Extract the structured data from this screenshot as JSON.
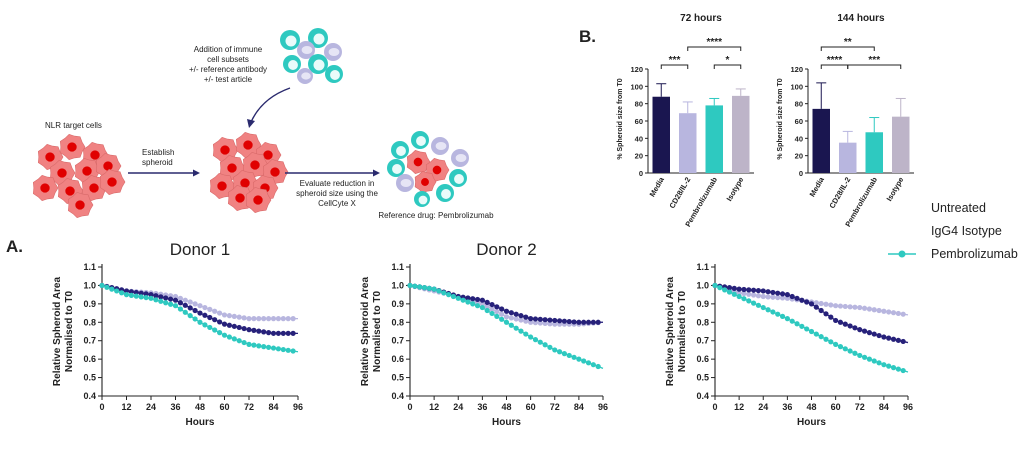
{
  "schematic": {
    "label_targets": "NLR target cells",
    "label_establish": [
      "Establish",
      "spheroid"
    ],
    "label_addition": [
      "Addition of immune",
      "cell subsets",
      "+/- reference antibody",
      "+/- test article"
    ],
    "label_evaluate": [
      "Evaluate reduction in",
      "spheroid size using the",
      "CellCyte X"
    ],
    "label_reference": "Reference drug: Pembrolizumab"
  },
  "panel_labels": {
    "a": "A.",
    "b": "B."
  },
  "legend": {
    "items": [
      {
        "label": "Untreated",
        "color": "#27217a",
        "marker": "none"
      },
      {
        "label": "IgG4 Isotype",
        "color": "#b8b6df",
        "marker": "none"
      },
      {
        "label": "Pembrolizumab",
        "color": "#2ec9c0",
        "marker": "circle"
      }
    ]
  },
  "colors": {
    "untreated": "#27217a",
    "isotype": "#b8b6df",
    "pembrolizumab": "#2ec9c0",
    "cell_red": "#f08282",
    "cell_nucleus": "#e00000",
    "arrow": "#2a2a6e"
  },
  "chart_data": [
    {
      "type": "line",
      "title": "Donor 1",
      "xlabel": "Hours",
      "ylabel": [
        "Relative Spheroid Area",
        "Normalised to T0"
      ],
      "x": [
        0,
        12,
        24,
        36,
        48,
        60,
        72,
        84,
        96
      ],
      "xticks": [
        "0",
        "12",
        "24",
        "36",
        "48",
        "60",
        "72",
        "84",
        "96"
      ],
      "yticks": [
        "0.4",
        "0.5",
        "0.6",
        "0.7",
        "0.8",
        "0.9",
        "1.0",
        "1.1"
      ],
      "ylim": [
        0.4,
        1.1
      ],
      "xlim": [
        0,
        96
      ],
      "series": [
        {
          "name": "Untreated",
          "values": [
            1.0,
            0.97,
            0.95,
            0.92,
            0.85,
            0.79,
            0.76,
            0.74,
            0.74
          ]
        },
        {
          "name": "IgG4 Isotype",
          "values": [
            1.0,
            0.97,
            0.96,
            0.94,
            0.89,
            0.84,
            0.82,
            0.82,
            0.82
          ]
        },
        {
          "name": "Pembrolizumab",
          "values": [
            1.0,
            0.95,
            0.93,
            0.89,
            0.8,
            0.73,
            0.68,
            0.66,
            0.64
          ]
        }
      ]
    },
    {
      "type": "line",
      "title": "Donor 2",
      "xlabel": "Hours",
      "ylabel": [
        "Relative Spheroid Area",
        "Normalised to T0"
      ],
      "x": [
        0,
        12,
        24,
        36,
        48,
        60,
        72,
        84,
        96
      ],
      "xticks": [
        "0",
        "12",
        "24",
        "36",
        "48",
        "60",
        "72",
        "84",
        "96"
      ],
      "yticks": [
        "0.4",
        "0.5",
        "0.6",
        "0.7",
        "0.8",
        "0.9",
        "1.0",
        "1.1"
      ],
      "ylim": [
        0.4,
        1.1
      ],
      "xlim": [
        0,
        96
      ],
      "series": [
        {
          "name": "Untreated",
          "values": [
            1.0,
            0.98,
            0.94,
            0.92,
            0.86,
            0.82,
            0.81,
            0.8,
            0.8
          ]
        },
        {
          "name": "IgG4 Isotype",
          "values": [
            1.0,
            0.97,
            0.94,
            0.9,
            0.83,
            0.8,
            0.79,
            0.79,
            0.8
          ]
        },
        {
          "name": "Pembrolizumab",
          "values": [
            1.0,
            0.98,
            0.93,
            0.88,
            0.8,
            0.72,
            0.65,
            0.6,
            0.55
          ]
        }
      ]
    },
    {
      "type": "line",
      "title": "",
      "xlabel": "Hours",
      "ylabel": [
        "Relative Spheroid Area",
        "Normalised to T0"
      ],
      "x": [
        0,
        12,
        24,
        36,
        48,
        60,
        72,
        84,
        96
      ],
      "xticks": [
        "0",
        "12",
        "24",
        "36",
        "48",
        "60",
        "72",
        "84",
        "96"
      ],
      "yticks": [
        "0.4",
        "0.5",
        "0.6",
        "0.7",
        "0.8",
        "0.9",
        "1.0",
        "1.1"
      ],
      "ylim": [
        0.4,
        1.1
      ],
      "xlim": [
        0,
        96
      ],
      "series": [
        {
          "name": "Untreated",
          "values": [
            1.0,
            0.98,
            0.97,
            0.95,
            0.9,
            0.81,
            0.76,
            0.72,
            0.69
          ]
        },
        {
          "name": "IgG4 Isotype",
          "values": [
            1.0,
            0.96,
            0.94,
            0.93,
            0.91,
            0.89,
            0.88,
            0.86,
            0.84
          ]
        },
        {
          "name": "Pembrolizumab",
          "values": [
            1.0,
            0.94,
            0.88,
            0.82,
            0.75,
            0.68,
            0.62,
            0.57,
            0.53
          ]
        }
      ]
    },
    {
      "type": "bar",
      "title": "72 hours",
      "ylabel": "% Spheroid size from T0",
      "categories": [
        "Media",
        "CD28/IL-2",
        "Pembrolizumab",
        "Isotype"
      ],
      "values": [
        88,
        69,
        78,
        89
      ],
      "errors": [
        15,
        13,
        8,
        8
      ],
      "colors": [
        "#1a1650",
        "#b8b6df",
        "#2ec9c0",
        "#bdb4c8"
      ],
      "ylim": [
        0,
        120
      ],
      "yticks": [
        "0",
        "20",
        "40",
        "60",
        "80",
        "100",
        "120"
      ],
      "significance": [
        {
          "from": 0,
          "to": 1,
          "label": "***",
          "level": 0
        },
        {
          "from": 2,
          "to": 3,
          "label": "*",
          "level": 0
        },
        {
          "from": 1,
          "to": 3,
          "label": "****",
          "level": 1
        }
      ]
    },
    {
      "type": "bar",
      "title": "144 hours",
      "ylabel": "% Spheroid size from T0",
      "categories": [
        "Media",
        "CD28/IL-2",
        "Pembrolizumab",
        "Isotype"
      ],
      "values": [
        74,
        35,
        47,
        65
      ],
      "errors": [
        30,
        13,
        17,
        21
      ],
      "colors": [
        "#1a1650",
        "#b8b6df",
        "#2ec9c0",
        "#bdb4c8"
      ],
      "ylim": [
        0,
        120
      ],
      "yticks": [
        "0",
        "20",
        "40",
        "60",
        "80",
        "100",
        "120"
      ],
      "significance": [
        {
          "from": 0,
          "to": 1,
          "label": "****",
          "level": 0
        },
        {
          "from": 1,
          "to": 3,
          "label": "***",
          "level": 0
        },
        {
          "from": 0,
          "to": 2,
          "label": "**",
          "level": 1
        }
      ]
    }
  ]
}
